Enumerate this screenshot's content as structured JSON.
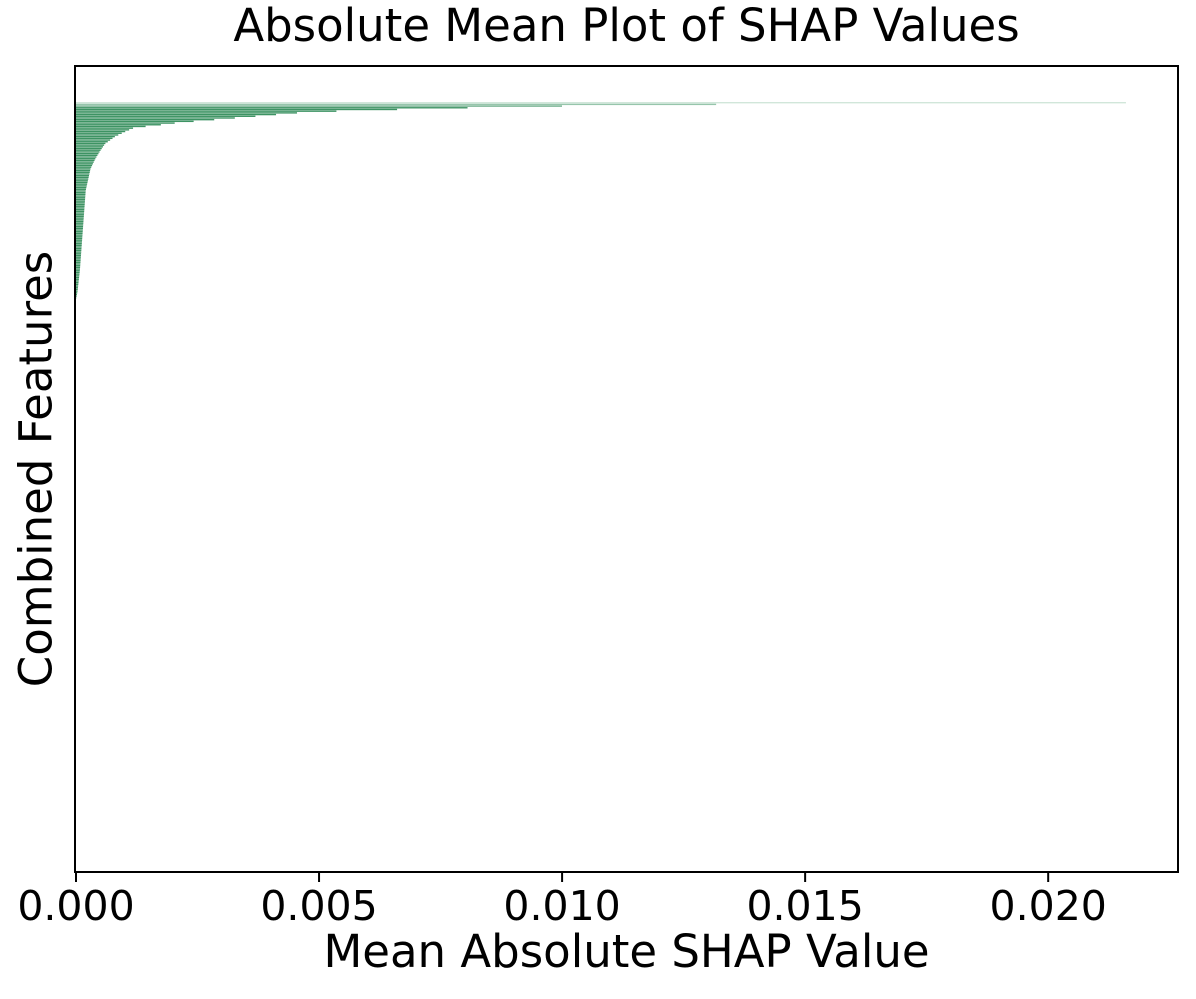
{
  "chart_data": {
    "type": "bar",
    "orientation": "horizontal",
    "title": "Absolute Mean Plot of SHAP Values",
    "xlabel": "Mean Absolute SHAP Value",
    "ylabel": "Combined Features",
    "xlim": [
      0,
      0.02265
    ],
    "xticks": [
      0.0,
      0.005,
      0.01,
      0.015,
      0.02
    ],
    "xtick_labels": [
      "0.000",
      "0.005",
      "0.010",
      "0.015",
      "0.020"
    ],
    "yticks": [],
    "grid": false,
    "legend": null,
    "bar_color": "#2e8b57",
    "background_color": "#ffffff",
    "frame_color": "#000000",
    "text_color": "#000000",
    "n_bars_rendered": 430,
    "top_feature_value": 0.0216,
    "envelope_description": "mean |SHAP| value vs. feature rank fraction (features sorted descending; long flat tail of ~zero values)",
    "envelope": [
      [
        0.0,
        0.0216
      ],
      [
        0.0014,
        0.0141
      ],
      [
        0.0027,
        0.0128
      ],
      [
        0.0041,
        0.0106
      ],
      [
        0.0055,
        0.0091
      ],
      [
        0.0075,
        0.0077
      ],
      [
        0.011,
        0.0056
      ],
      [
        0.0137,
        0.0046
      ],
      [
        0.0164,
        0.0041
      ],
      [
        0.0219,
        0.0031
      ],
      [
        0.0274,
        0.0021
      ],
      [
        0.0315,
        0.0016
      ],
      [
        0.0342,
        0.0012
      ],
      [
        0.04,
        0.001
      ],
      [
        0.0466,
        0.0008
      ],
      [
        0.0562,
        0.0006
      ],
      [
        0.0658,
        0.0005
      ],
      [
        0.0767,
        0.0004
      ],
      [
        0.0904,
        0.0003
      ],
      [
        0.1205,
        0.0002
      ],
      [
        0.1753,
        0.00014
      ],
      [
        0.2301,
        8e-05
      ],
      [
        0.26,
        3e-05
      ],
      [
        0.27,
        0.0
      ],
      [
        1.0,
        0.0
      ]
    ]
  }
}
